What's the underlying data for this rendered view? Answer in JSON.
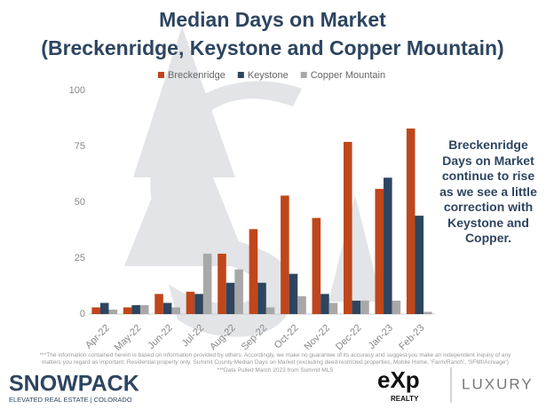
{
  "chart_data": {
    "type": "bar",
    "title": "Median Days on Market",
    "subtitle": "(Breckenridge, Keystone and  Copper Mountain)",
    "categories": [
      "Apr-22",
      "May-22",
      "Jun-22",
      "Jul-22",
      "Aug-22",
      "Sep-22",
      "Oct-22",
      "Nov-22",
      "Dec-22",
      "Jan-23",
      "Feb-23"
    ],
    "series": [
      {
        "name": "Breckenridge",
        "color": "#c0461c",
        "values": [
          3,
          3,
          9,
          10,
          27,
          38,
          53,
          43,
          77,
          56,
          83
        ]
      },
      {
        "name": "Keystone",
        "color": "#2d4560",
        "values": [
          5,
          4,
          5,
          9,
          14,
          14,
          18,
          9,
          6,
          61,
          44
        ]
      },
      {
        "name": "Copper Mountain",
        "color": "#a8a8a8",
        "values": [
          2,
          4,
          3,
          27,
          20,
          3,
          8,
          5,
          6,
          6,
          1
        ]
      }
    ],
    "ylim": [
      0,
      100
    ],
    "yticks": [
      0,
      25,
      50,
      75,
      100
    ],
    "grid": false,
    "legend": "top",
    "annotation": "Breckenridge Days on Market continue to rise as we see a little correction with Keystone and Copper.",
    "disclaimer": "***The information contained herein is based on information provided by others. Accordingly, we make no guarantee of its accuracy and suggest you make an independent inquiry of any matters you regard as important. Residential property only. Summit County Median Days on Market (excluding deed restricted properties, Mobile Home, 'Farm/Ranch', 'SFMf/Acreage') ***Data Pulled March 2023 from Summit MLS",
    "brand": {
      "name": "SNOWPACK",
      "tagline": "ELEVATED REAL ESTATE | COLORADO",
      "exp": "eXp",
      "realty": "REALTY",
      "luxury": "LUXURY"
    }
  }
}
